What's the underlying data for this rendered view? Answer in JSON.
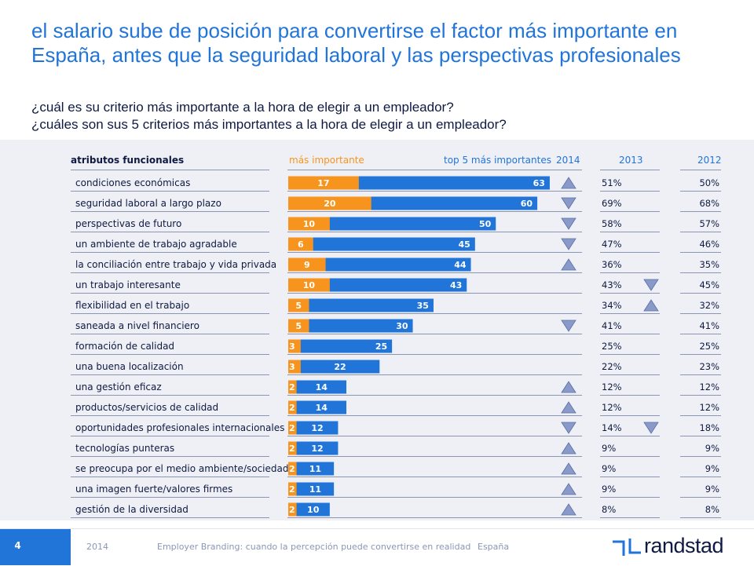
{
  "title_line1": "el salario sube de posición para convertirse el factor más importante en",
  "title_line2": "España, antes que la seguridad laboral y las perspectivas profesionales",
  "question1": "¿cuál es su criterio más importante a la hora de elegir a un empleador?",
  "question2": "¿cuáles son sus 5 criterios más importantes a la hora de elegir a un empleador?",
  "headers": {
    "attributes": "atributos funcionales",
    "most_important": "más importante",
    "top5": "top 5 más importantes",
    "y2014": "2014",
    "y2013": "2013",
    "y2012": "2012"
  },
  "colors": {
    "orange": "#f7941d",
    "blue": "#2175d9",
    "navy": "#0f1941",
    "triangle_fill": "#8a9ac8"
  },
  "chart_data": {
    "type": "bar",
    "categories": [
      "condiciones económicas",
      "seguridad laboral a largo plazo",
      "perspectivas de futuro",
      "un ambiente de trabajo agradable",
      "la conciliación entre trabajo y vida privada",
      "un trabajo interesante",
      "flexibilidad en el trabajo",
      "saneada a nivel financiero",
      "formación de calidad",
      "una buena localización",
      "una gestión eficaz",
      "productos/servicios de calidad",
      "oportunidades profesionales internacionales",
      "tecnologías punteras",
      "se preocupa por el medio ambiente/sociedad",
      "una imagen fuerte/valores firmes",
      "gestión de la diversidad"
    ],
    "series": [
      {
        "name": "más importante",
        "values": [
          17,
          20,
          10,
          6,
          9,
          10,
          5,
          5,
          3,
          3,
          2,
          2,
          2,
          2,
          2,
          2,
          2
        ]
      },
      {
        "name": "top 5 más importantes",
        "values": [
          63,
          60,
          50,
          45,
          44,
          43,
          35,
          30,
          25,
          22,
          14,
          14,
          12,
          12,
          11,
          11,
          10
        ]
      }
    ],
    "xlim": [
      0,
      70
    ],
    "trend_2014_vs_2013": [
      "up",
      "down",
      "down",
      "down",
      "up",
      "none",
      "none",
      "down",
      "none",
      "none",
      "up",
      "up",
      "down",
      "up",
      "up",
      "up",
      "up"
    ],
    "values_2013": [
      "51%",
      "69%",
      "58%",
      "47%",
      "36%",
      "43%",
      "34%",
      "41%",
      "25%",
      "22%",
      "12%",
      "12%",
      "14%",
      "9%",
      "9%",
      "9%",
      "8%"
    ],
    "trend_2013_vs_2012": [
      "none",
      "none",
      "none",
      "none",
      "none",
      "down",
      "up",
      "none",
      "none",
      "none",
      "none",
      "none",
      "down",
      "none",
      "none",
      "none",
      "none"
    ],
    "values_2012": [
      "50%",
      "68%",
      "57%",
      "46%",
      "35%",
      "45%",
      "32%",
      "41%",
      "25%",
      "23%",
      "12%",
      "12%",
      "18%",
      "9%",
      "9%",
      "9%",
      "8%"
    ]
  },
  "footer": {
    "page": "4",
    "year": "2014",
    "doc": "Employer Branding: cuando la percepción puede convertirse en realidad",
    "country": "España",
    "logo": "randstad"
  }
}
